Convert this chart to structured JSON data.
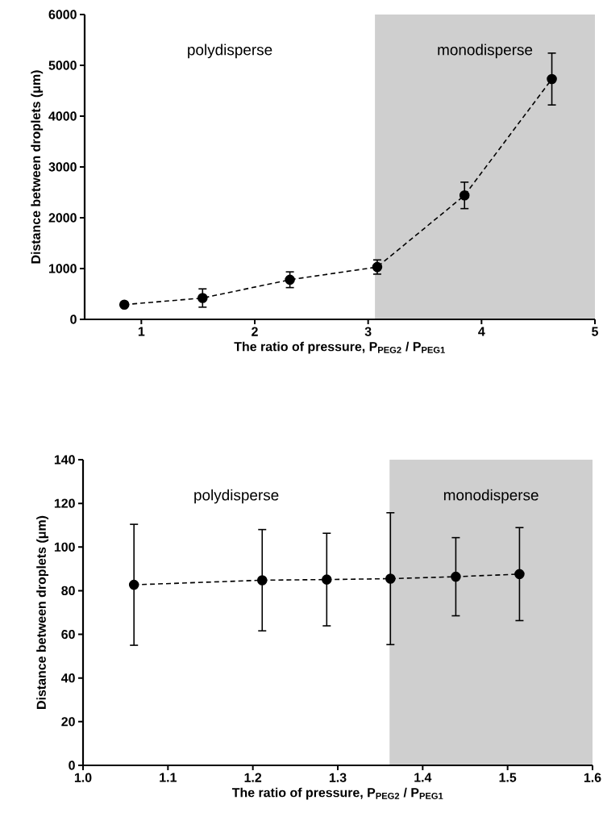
{
  "chart_data": [
    {
      "type": "line",
      "xlabel": "The ratio of pressure, P$_{PEG2}$ / P$_{PEG1}$",
      "ylabel": "Distance between droplets (μm)",
      "x": [
        0.85,
        1.54,
        2.31,
        3.08,
        3.85,
        4.62
      ],
      "series": [
        {
          "color": "#000000",
          "values": [
            290,
            420,
            780,
            1030,
            2440,
            4730
          ],
          "errors": [
            null,
            180,
            155,
            140,
            260,
            510
          ]
        }
      ],
      "xlim": [
        0.5,
        5
      ],
      "xticks": [
        1,
        2,
        3,
        4,
        5
      ],
      "ylim": [
        0,
        6000
      ],
      "yticks": [
        0,
        1000,
        2000,
        3000,
        4000,
        5000,
        6000
      ],
      "bands": [
        {
          "axis": "x",
          "from": 3.06,
          "to": 5,
          "label": "monodisperse",
          "color": "#cfcfcf"
        }
      ],
      "annotations": [
        "polydisperse"
      ],
      "marker": "circle",
      "line_style": "dashed"
    },
    {
      "type": "line",
      "xlabel": "The ratio of pressure, P$_{PEG2}$ / P$_{PEG1}$",
      "ylabel": "Distance between droplets (μm)",
      "x": [
        1.06,
        1.211,
        1.287,
        1.362,
        1.439,
        1.514
      ],
      "series": [
        {
          "color": "#000000",
          "values": [
            82.7,
            84.8,
            85.1,
            85.5,
            86.4,
            87.6
          ],
          "errors": [
            27.7,
            23.2,
            21.2,
            30.2,
            17.9,
            21.3
          ]
        }
      ],
      "xlim": [
        1.0,
        1.6
      ],
      "xticks": [
        {
          "value": 1.0,
          "label": "1.0"
        },
        {
          "value": 1.1,
          "label": "1.1"
        },
        {
          "value": 1.2,
          "label": "1.2"
        },
        {
          "value": 1.3,
          "label": "1.3"
        },
        {
          "value": 1.4,
          "label": "1.4"
        },
        {
          "value": 1.5,
          "label": "1.5"
        },
        {
          "value": 1.6,
          "label": "1.6"
        }
      ],
      "ylim": [
        0,
        140
      ],
      "yticks": [
        0,
        20,
        40,
        60,
        80,
        100,
        120,
        140
      ],
      "bands": [
        {
          "axis": "x",
          "from": 1.361,
          "to": 1.6,
          "label": "monodisperse",
          "color": "#cfcfcf"
        }
      ],
      "annotations": [
        "polydisperse"
      ],
      "marker": "circle",
      "line_style": "dashed"
    }
  ]
}
